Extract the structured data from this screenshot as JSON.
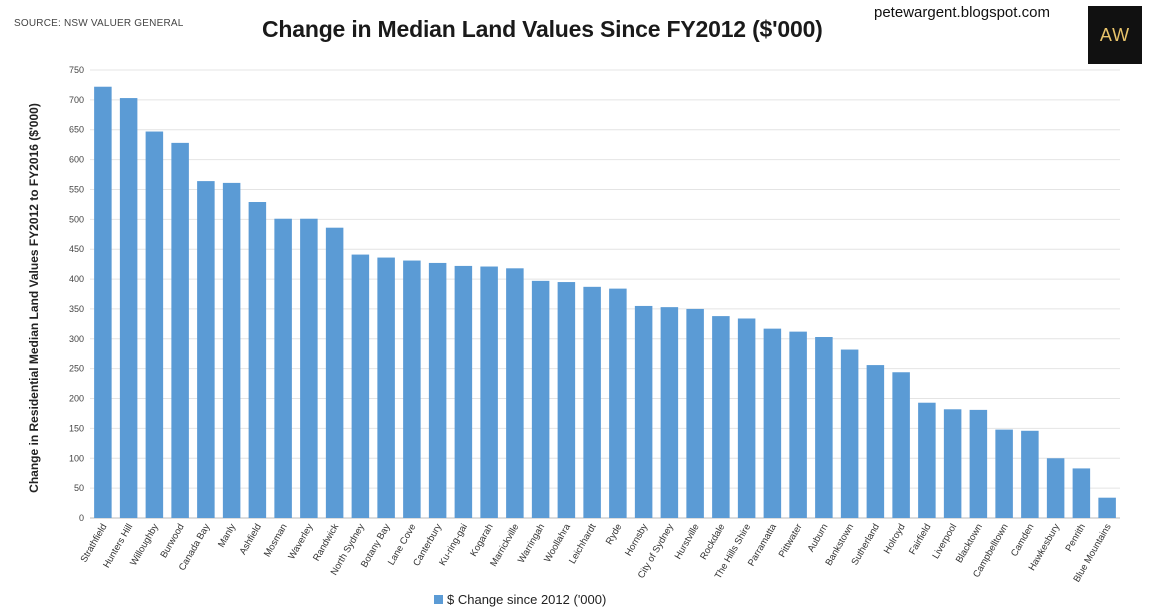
{
  "header": {
    "source": "SOURCE: NSW VALUER GENERAL",
    "blog": "petewargent.blogspot.com",
    "logo_text": "AW"
  },
  "chart_data": {
    "type": "bar",
    "title": "Change in Median Land Values Since FY2012 ($'000)",
    "xlabel": "",
    "ylabel": "Change in Residential Median Land Values FY2012 to FY2016 ($'000)",
    "ylim": [
      0,
      750
    ],
    "yticks": [
      0,
      50,
      100,
      150,
      200,
      250,
      300,
      350,
      400,
      450,
      500,
      550,
      600,
      650,
      700,
      750
    ],
    "grid": true,
    "legend_position": "bottom",
    "bar_color": "#5b9bd5",
    "categories": [
      "Strathfield",
      "Hunters Hill",
      "Willoughby",
      "Burwood",
      "Canada Bay",
      "Manly",
      "Ashfield",
      "Mosman",
      "Waverley",
      "Randwick",
      "North Sydney",
      "Botany Bay",
      "Lane Cove",
      "Canterbury",
      "Ku-ring-gai",
      "Kogarah",
      "Marrickville",
      "Warringah",
      "Woollahra",
      "Leichhardt",
      "Ryde",
      "Hornsby",
      "City of Sydney",
      "Hurstville",
      "Rockdale",
      "The Hills Shire",
      "Parramatta",
      "Pittwater",
      "Auburn",
      "Bankstown",
      "Sutherland",
      "Holroyd",
      "Fairfield",
      "Liverpool",
      "Blacktown",
      "Campbelltown",
      "Camden",
      "Hawkesbury",
      "Penrith",
      "Blue Mountains"
    ],
    "series": [
      {
        "name": "$ Change since 2012 ('000)",
        "values": [
          722,
          703,
          647,
          628,
          564,
          561,
          529,
          501,
          501,
          486,
          441,
          436,
          431,
          427,
          422,
          421,
          418,
          397,
          395,
          387,
          384,
          355,
          353,
          350,
          338,
          334,
          317,
          312,
          303,
          282,
          256,
          244,
          193,
          182,
          181,
          148,
          146,
          100,
          83,
          34
        ]
      }
    ]
  }
}
